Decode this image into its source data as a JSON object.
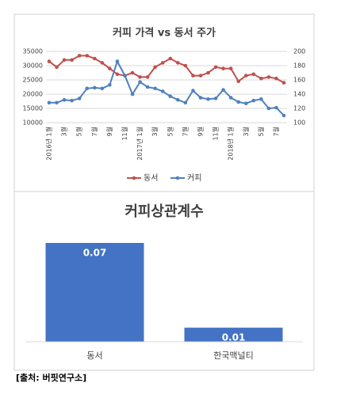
{
  "chart_data": [
    {
      "type": "line",
      "title": "커피 가격 vs 동서 주가",
      "categories": [
        "2016년 1월",
        null,
        "3월",
        null,
        "5월",
        null,
        "7월",
        null,
        "9월",
        null,
        "11월",
        null,
        "2017년 1월",
        null,
        "3월",
        null,
        "5월",
        null,
        "7월",
        null,
        "9월",
        null,
        "11월",
        null,
        "2018년 1월",
        null,
        "3월",
        null,
        "5월",
        null,
        "7월",
        null
      ],
      "ylim": [
        10000,
        35000
      ],
      "yticks": [
        10000,
        15000,
        20000,
        25000,
        30000,
        35000
      ],
      "y2lim": [
        100,
        200
      ],
      "y2ticks": [
        100,
        120,
        140,
        160,
        180,
        200
      ],
      "legend": "bottom",
      "series": [
        {
          "name": "동서",
          "color": "#c0504d",
          "values": [
            31500,
            29500,
            32000,
            32000,
            33500,
            33500,
            32500,
            31000,
            29000,
            27000,
            26500,
            27500,
            26000,
            26000,
            29500,
            31000,
            32500,
            31000,
            30000,
            26500,
            26500,
            27500,
            29500,
            29000,
            29000,
            24500,
            26500,
            27000,
            25500,
            26000,
            25500,
            24000
          ]
        },
        {
          "name": "커피",
          "color": "#4f81bd",
          "axis": "y2",
          "values": [
            128,
            128,
            132,
            131,
            134,
            148,
            149,
            148,
            153,
            186,
            166,
            140,
            157,
            150,
            148,
            144,
            137,
            132,
            128,
            145,
            135,
            133,
            134,
            146,
            135,
            129,
            127,
            131,
            133,
            120,
            121,
            110
          ]
        }
      ]
    },
    {
      "type": "bar",
      "title": "커피상관계수",
      "categories": [
        "동서",
        "한국맥널티"
      ],
      "values": [
        0.07,
        0.01
      ],
      "color": "#4472c4"
    }
  ],
  "source": "[출처: 버핏연구소]"
}
